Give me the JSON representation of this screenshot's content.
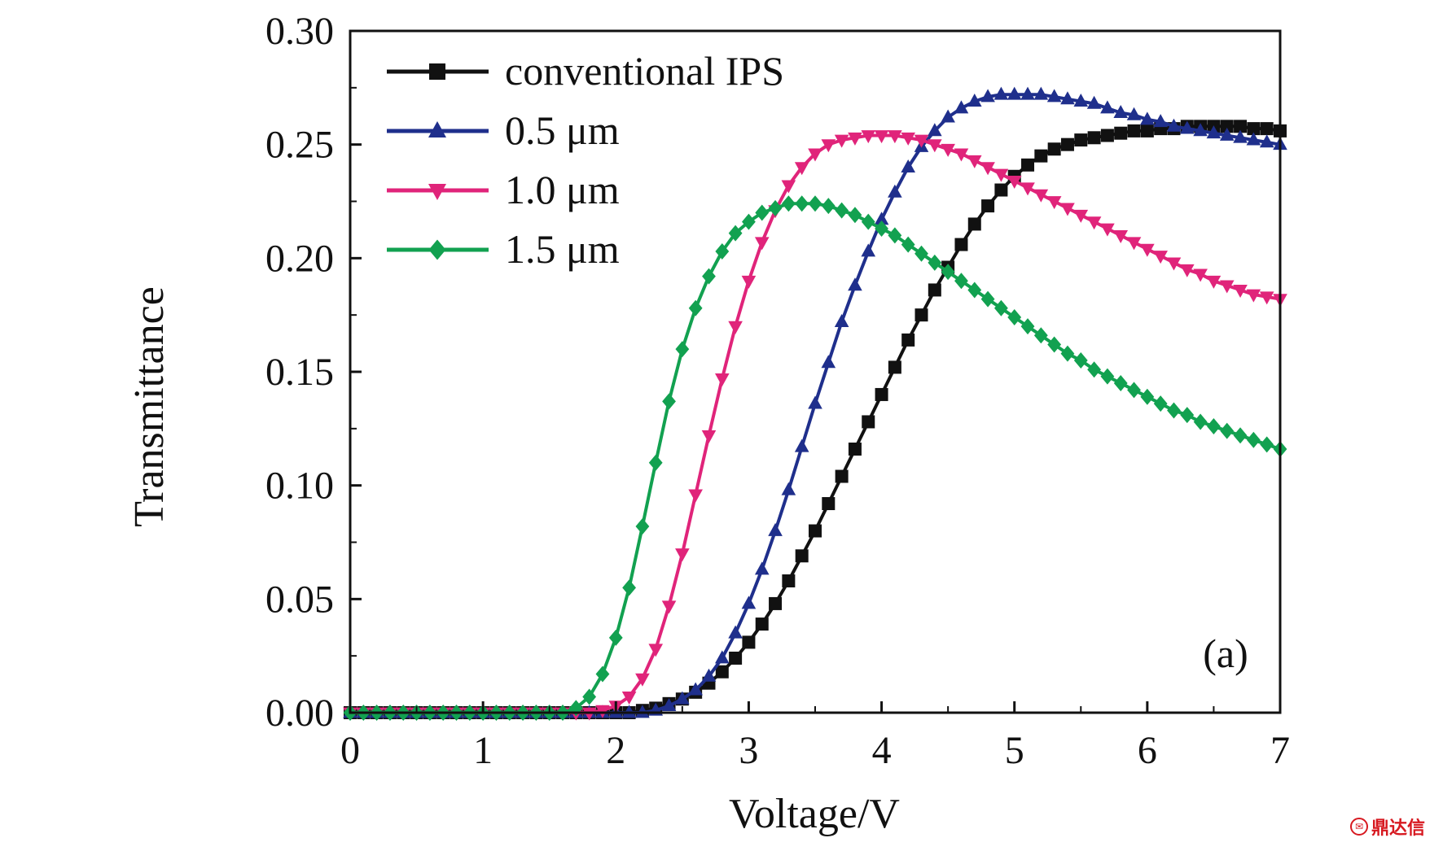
{
  "chart_data": {
    "type": "line",
    "xlabel": "Voltage/V",
    "ylabel": "Transmittance",
    "xlim": [
      0,
      7
    ],
    "ylim": [
      0,
      0.3
    ],
    "x_ticks": [
      "0",
      "1",
      "2",
      "3",
      "4",
      "5",
      "6",
      "7"
    ],
    "y_ticks": [
      "0.00",
      "0.05",
      "0.10",
      "0.15",
      "0.20",
      "0.25",
      "0.30"
    ],
    "panel_label": "(a)",
    "grid": false,
    "legend_position": "top-left",
    "x_start": 0,
    "x_step": 0.1,
    "series": [
      {
        "name": "conventional IPS",
        "color": "#111111",
        "marker": "square",
        "values": [
          0,
          0,
          0,
          0,
          0,
          0,
          0,
          0,
          0,
          0,
          0,
          0,
          0,
          0,
          0,
          0,
          0,
          0,
          0,
          0,
          0,
          0,
          0.001,
          0.002,
          0.004,
          0.006,
          0.009,
          0.013,
          0.018,
          0.024,
          0.031,
          0.039,
          0.048,
          0.058,
          0.069,
          0.08,
          0.092,
          0.104,
          0.116,
          0.128,
          0.14,
          0.152,
          0.164,
          0.175,
          0.186,
          0.196,
          0.206,
          0.215,
          0.223,
          0.23,
          0.236,
          0.241,
          0.245,
          0.248,
          0.25,
          0.252,
          0.253,
          0.254,
          0.255,
          0.256,
          0.256,
          0.257,
          0.257,
          0.258,
          0.258,
          0.258,
          0.258,
          0.258,
          0.257,
          0.257,
          0.256
        ]
      },
      {
        "name": "0.5 μm",
        "color": "#1f2f8c",
        "marker": "triangle-up",
        "values": [
          0,
          0,
          0,
          0,
          0,
          0,
          0,
          0,
          0,
          0,
          0,
          0,
          0,
          0,
          0,
          0,
          0,
          0,
          0,
          0,
          0,
          0,
          0,
          0.001,
          0.003,
          0.006,
          0.01,
          0.016,
          0.024,
          0.035,
          0.048,
          0.063,
          0.08,
          0.098,
          0.117,
          0.136,
          0.154,
          0.172,
          0.188,
          0.203,
          0.217,
          0.229,
          0.24,
          0.249,
          0.256,
          0.262,
          0.266,
          0.269,
          0.271,
          0.272,
          0.272,
          0.272,
          0.272,
          0.271,
          0.27,
          0.269,
          0.268,
          0.266,
          0.264,
          0.263,
          0.261,
          0.26,
          0.258,
          0.257,
          0.256,
          0.255,
          0.254,
          0.253,
          0.252,
          0.251,
          0.25
        ]
      },
      {
        "name": "1.0 μm",
        "color": "#e0247a",
        "marker": "triangle-down",
        "values": [
          0,
          0,
          0,
          0,
          0,
          0,
          0,
          0,
          0,
          0,
          0,
          0,
          0,
          0,
          0,
          0,
          0,
          0,
          0,
          0.001,
          0.003,
          0.007,
          0.015,
          0.028,
          0.047,
          0.07,
          0.096,
          0.122,
          0.147,
          0.17,
          0.19,
          0.207,
          0.221,
          0.232,
          0.24,
          0.246,
          0.25,
          0.252,
          0.253,
          0.254,
          0.254,
          0.254,
          0.253,
          0.252,
          0.25,
          0.248,
          0.246,
          0.243,
          0.24,
          0.237,
          0.234,
          0.231,
          0.228,
          0.225,
          0.222,
          0.219,
          0.216,
          0.213,
          0.21,
          0.207,
          0.204,
          0.201,
          0.198,
          0.195,
          0.193,
          0.19,
          0.188,
          0.186,
          0.184,
          0.183,
          0.182
        ]
      },
      {
        "name": "1.5 μm",
        "color": "#12a150",
        "marker": "diamond",
        "values": [
          0,
          0,
          0,
          0,
          0,
          0,
          0,
          0,
          0,
          0,
          0,
          0,
          0,
          0,
          0,
          0,
          0,
          0.002,
          0.007,
          0.017,
          0.033,
          0.055,
          0.082,
          0.11,
          0.137,
          0.16,
          0.178,
          0.192,
          0.203,
          0.211,
          0.216,
          0.22,
          0.222,
          0.224,
          0.224,
          0.224,
          0.223,
          0.221,
          0.219,
          0.216,
          0.213,
          0.21,
          0.206,
          0.202,
          0.198,
          0.194,
          0.19,
          0.186,
          0.182,
          0.178,
          0.174,
          0.17,
          0.166,
          0.162,
          0.158,
          0.155,
          0.151,
          0.148,
          0.145,
          0.142,
          0.139,
          0.136,
          0.133,
          0.131,
          0.128,
          0.126,
          0.124,
          0.122,
          0.12,
          0.118,
          0.116
        ]
      }
    ]
  },
  "watermark": {
    "icon": "seal-icon",
    "text": "鼎达信"
  }
}
